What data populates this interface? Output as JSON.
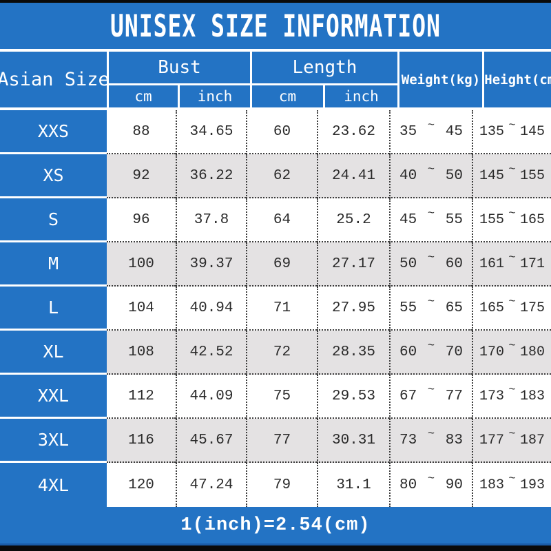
{
  "title": "UNISEX SIZE INFORMATION",
  "footer_note": "1(inch)=2.54(cm)",
  "range_separator": "~",
  "colors": {
    "accent_blue": "#2373c4",
    "alt_row_gray": "#e4e2e3",
    "data_text": "#2a2a2a"
  },
  "table": {
    "corner_header": "Asian Size",
    "groups": [
      {
        "label": "Bust",
        "sub": [
          "cm",
          "inch"
        ]
      },
      {
        "label": "Length",
        "sub": [
          "cm",
          "inch"
        ]
      }
    ],
    "range_headers": [
      "Weight(kg)",
      "Height(cm)"
    ],
    "rows": [
      {
        "size": "XXS",
        "bust_cm": "88",
        "bust_inch": "34.65",
        "length_cm": "60",
        "length_inch": "23.62",
        "weight_min": "35",
        "weight_max": "45",
        "height_min": "135",
        "height_max": "145"
      },
      {
        "size": "XS",
        "bust_cm": "92",
        "bust_inch": "36.22",
        "length_cm": "62",
        "length_inch": "24.41",
        "weight_min": "40",
        "weight_max": "50",
        "height_min": "145",
        "height_max": "155"
      },
      {
        "size": "S",
        "bust_cm": "96",
        "bust_inch": "37.8",
        "length_cm": "64",
        "length_inch": "25.2",
        "weight_min": "45",
        "weight_max": "55",
        "height_min": "155",
        "height_max": "165"
      },
      {
        "size": "M",
        "bust_cm": "100",
        "bust_inch": "39.37",
        "length_cm": "69",
        "length_inch": "27.17",
        "weight_min": "50",
        "weight_max": "60",
        "height_min": "161",
        "height_max": "171"
      },
      {
        "size": "L",
        "bust_cm": "104",
        "bust_inch": "40.94",
        "length_cm": "71",
        "length_inch": "27.95",
        "weight_min": "55",
        "weight_max": "65",
        "height_min": "165",
        "height_max": "175"
      },
      {
        "size": "XL",
        "bust_cm": "108",
        "bust_inch": "42.52",
        "length_cm": "72",
        "length_inch": "28.35",
        "weight_min": "60",
        "weight_max": "70",
        "height_min": "170",
        "height_max": "180"
      },
      {
        "size": "XXL",
        "bust_cm": "112",
        "bust_inch": "44.09",
        "length_cm": "75",
        "length_inch": "29.53",
        "weight_min": "67",
        "weight_max": "77",
        "height_min": "173",
        "height_max": "183"
      },
      {
        "size": "3XL",
        "bust_cm": "116",
        "bust_inch": "45.67",
        "length_cm": "77",
        "length_inch": "30.31",
        "weight_min": "73",
        "weight_max": "83",
        "height_min": "177",
        "height_max": "187"
      },
      {
        "size": "4XL",
        "bust_cm": "120",
        "bust_inch": "47.24",
        "length_cm": "79",
        "length_inch": "31.1",
        "weight_min": "80",
        "weight_max": "90",
        "height_min": "183",
        "height_max": "193"
      }
    ]
  },
  "chart_data": {
    "type": "table",
    "title": "UNISEX SIZE INFORMATION",
    "columns": [
      "Asian Size",
      "Bust cm",
      "Bust inch",
      "Length cm",
      "Length inch",
      "Weight(kg)",
      "Height(cm)"
    ],
    "rows": [
      [
        "XXS",
        88,
        34.65,
        60,
        23.62,
        "35~45",
        "135~145"
      ],
      [
        "XS",
        92,
        36.22,
        62,
        24.41,
        "40~50",
        "145~155"
      ],
      [
        "S",
        96,
        37.8,
        64,
        25.2,
        "45~55",
        "155~165"
      ],
      [
        "M",
        100,
        39.37,
        69,
        27.17,
        "50~60",
        "161~171"
      ],
      [
        "L",
        104,
        40.94,
        71,
        27.95,
        "55~65",
        "165~175"
      ],
      [
        "XL",
        108,
        42.52,
        72,
        28.35,
        "60~70",
        "170~180"
      ],
      [
        "XXL",
        112,
        44.09,
        75,
        29.53,
        "67~77",
        "173~183"
      ],
      [
        "3XL",
        116,
        45.67,
        77,
        30.31,
        "73~83",
        "177~187"
      ],
      [
        "4XL",
        120,
        47.24,
        79,
        31.1,
        "80~90",
        "183~193"
      ]
    ],
    "footnote": "1(inch)=2.54(cm)"
  }
}
